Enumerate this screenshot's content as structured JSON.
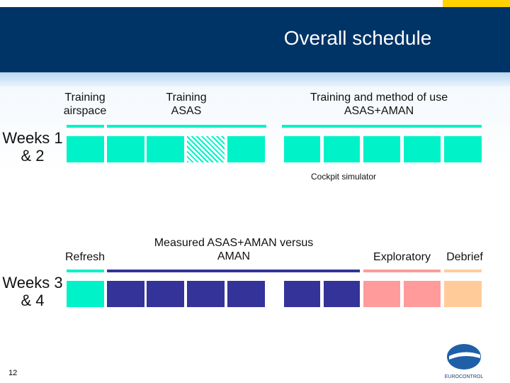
{
  "header": {
    "title": "Overall schedule"
  },
  "rows": [
    {
      "label": "Weeks 1 & 2",
      "phases": [
        {
          "label": "Training airspace"
        },
        {
          "label": "Training ASAS"
        },
        {
          "label": "Training and method of use ASAS+AMAN"
        }
      ],
      "note": "Cockpit simulator"
    },
    {
      "label": "Weeks 3 & 4",
      "phases": [
        {
          "label": "Refresh"
        },
        {
          "label": "Measured ASAS+AMAN versus AMAN"
        },
        {
          "label": "Exploratory"
        },
        {
          "label": "Debrief"
        }
      ]
    }
  ],
  "footer": {
    "page_number": "12",
    "logo": "EUROCONTROL"
  }
}
